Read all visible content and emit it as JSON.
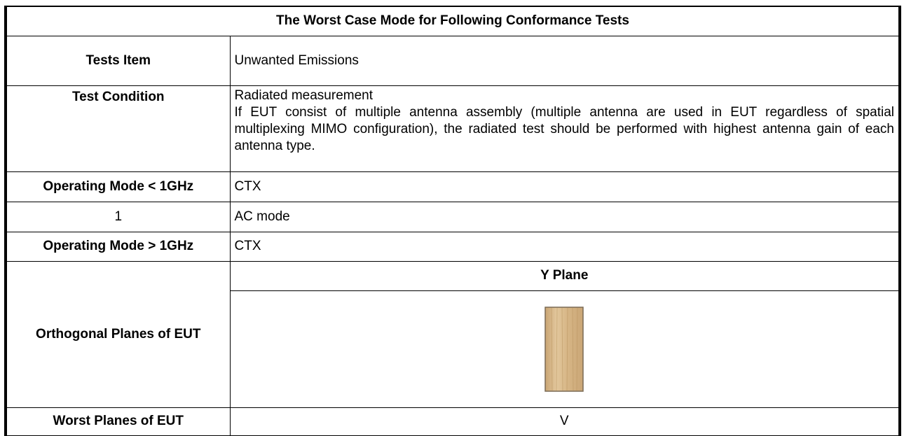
{
  "table": {
    "title": "The Worst Case Mode for Following Conformance Tests",
    "rows": [
      {
        "label": "Tests Item",
        "value": "Unwanted Emissions"
      },
      {
        "label": "Test Condition",
        "value": [
          "Radiated measurement",
          "If EUT consist of multiple antenna assembly (multiple antenna are used in EUT regardless of spatial multiplexing MIMO configuration), the radiated test should be performed with highest antenna gain of each antenna type."
        ]
      },
      {
        "label": "Operating Mode < 1GHz",
        "value": "CTX"
      },
      {
        "label": "1",
        "value": "AC mode"
      },
      {
        "label": "Operating Mode > 1GHz",
        "value": "CTX"
      }
    ],
    "planes": {
      "label": "Orthogonal Planes of EUT",
      "plane": "Y Plane"
    },
    "worst": {
      "label": "Worst Planes of EUT",
      "value": "V"
    }
  }
}
